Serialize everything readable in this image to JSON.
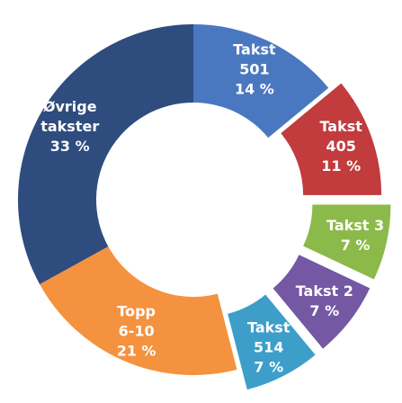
{
  "chart_data": {
    "type": "donut",
    "categories": [
      "Takst\n501",
      "Takst\n405",
      "Takst 3",
      "Takst 2",
      "Takst\n514",
      "Topp\n6-10",
      "Øvrige\ntakster"
    ],
    "values": [
      14,
      11,
      7,
      7,
      7,
      21,
      33
    ],
    "value_labels": [
      "14 %",
      "11 %",
      "7 %",
      "7 %",
      "7 %",
      "21 %",
      "33 %"
    ],
    "colors": [
      "#4a78c0",
      "#c23b3d",
      "#8cba4a",
      "#7458a3",
      "#3d9ec9",
      "#f4923f",
      "#2f4c7e"
    ]
  }
}
